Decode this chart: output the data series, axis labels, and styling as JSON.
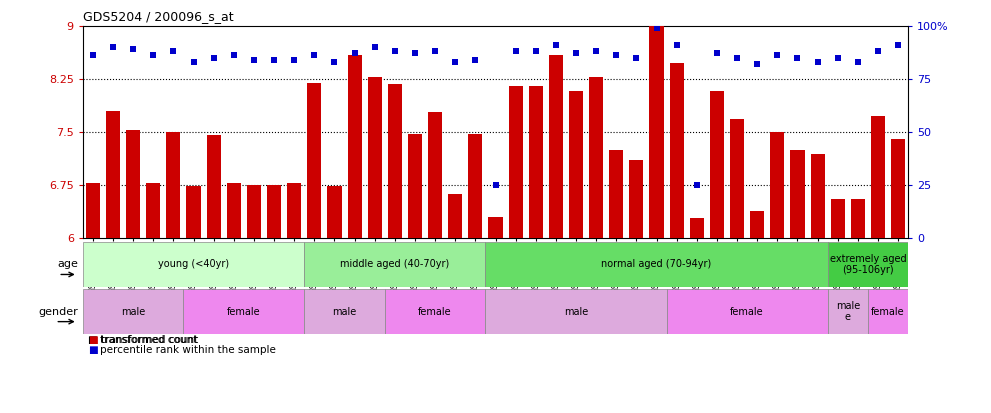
{
  "title": "GDS5204 / 200096_s_at",
  "samples": [
    "GSM1303144",
    "GSM1303147",
    "GSM1303148",
    "GSM1303151",
    "GSM1303155",
    "GSM1303145",
    "GSM1303146",
    "GSM1303149",
    "GSM1303150",
    "GSM1303152",
    "GSM1303153",
    "GSM1303154",
    "GSM1303156",
    "GSM1303159",
    "GSM1303161",
    "GSM1303162",
    "GSM1303164",
    "GSM1303157",
    "GSM1303158",
    "GSM1303160",
    "GSM1303163",
    "GSM1303165",
    "GSM1303167",
    "GSM1303169",
    "GSM1303170",
    "GSM1303172",
    "GSM1303174",
    "GSM1303175",
    "GSM1303177",
    "GSM1303178",
    "GSM1303166",
    "GSM1303168",
    "GSM1303171",
    "GSM1303173",
    "GSM1303176",
    "GSM1303179",
    "GSM1303180",
    "GSM1303182",
    "GSM1303181",
    "GSM1303183",
    "GSM1303184"
  ],
  "bar_values": [
    6.78,
    7.8,
    7.52,
    6.78,
    7.5,
    6.73,
    7.45,
    6.78,
    6.75,
    6.75,
    6.78,
    8.19,
    6.73,
    8.58,
    8.27,
    8.18,
    7.47,
    7.78,
    6.62,
    7.47,
    6.3,
    8.15,
    8.15,
    8.58,
    8.08,
    8.27,
    7.25,
    7.1,
    9.0,
    8.48,
    6.28,
    8.08,
    7.68,
    6.38,
    7.5,
    7.25,
    7.18,
    6.55,
    6.55,
    7.72,
    7.4
  ],
  "percentile_values": [
    86,
    90,
    89,
    86,
    88,
    83,
    85,
    86,
    84,
    84,
    84,
    86,
    83,
    87,
    90,
    88,
    87,
    88,
    83,
    84,
    25,
    88,
    88,
    91,
    87,
    88,
    86,
    85,
    99,
    91,
    25,
    87,
    85,
    82,
    86,
    85,
    83,
    85,
    83,
    88,
    91
  ],
  "bar_color": "#cc0000",
  "dot_color": "#0000cc",
  "ylim_left": [
    6.0,
    9.0
  ],
  "ylim_right": [
    0,
    100
  ],
  "yticks_left": [
    6.0,
    6.75,
    7.5,
    8.25,
    9.0
  ],
  "ytick_labels_left": [
    "6",
    "6.75",
    "7.5",
    "8.25",
    "9"
  ],
  "yticks_right": [
    0,
    25,
    50,
    75,
    100
  ],
  "ytick_labels_right": [
    "0",
    "25",
    "50",
    "75",
    "100%"
  ],
  "hlines": [
    6.75,
    7.5,
    8.25
  ],
  "age_groups": [
    {
      "label": "young (<40yr)",
      "start": 0,
      "end": 11,
      "color": "#ccffcc"
    },
    {
      "label": "middle aged (40-70yr)",
      "start": 11,
      "end": 20,
      "color": "#99ee99"
    },
    {
      "label": "normal aged (70-94yr)",
      "start": 20,
      "end": 37,
      "color": "#66dd66"
    },
    {
      "label": "extremely aged\n(95-106yr)",
      "start": 37,
      "end": 41,
      "color": "#44cc44"
    }
  ],
  "gender_groups": [
    {
      "label": "male",
      "start": 0,
      "end": 5,
      "color": "#ddaadd"
    },
    {
      "label": "female",
      "start": 5,
      "end": 11,
      "color": "#ee88ee"
    },
    {
      "label": "male",
      "start": 11,
      "end": 15,
      "color": "#ddaadd"
    },
    {
      "label": "female",
      "start": 15,
      "end": 20,
      "color": "#ee88ee"
    },
    {
      "label": "male",
      "start": 20,
      "end": 29,
      "color": "#ddaadd"
    },
    {
      "label": "female",
      "start": 29,
      "end": 37,
      "color": "#ee88ee"
    },
    {
      "label": "male\ne",
      "start": 37,
      "end": 39,
      "color": "#ddaadd"
    },
    {
      "label": "female",
      "start": 39,
      "end": 41,
      "color": "#ee88ee"
    }
  ],
  "bg_color": "#ffffff",
  "plot_bg_color": "#ffffff"
}
